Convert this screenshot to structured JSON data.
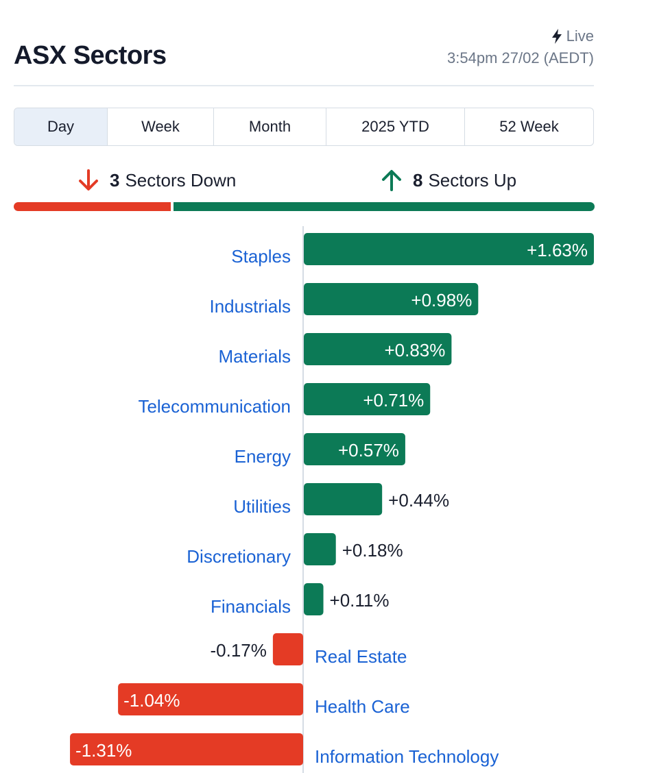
{
  "header": {
    "title": "ASX Sectors",
    "live_label": "Live",
    "timestamp": "3:54pm 27/02 (AEDT)"
  },
  "tabs": [
    {
      "label": "Day",
      "active": true
    },
    {
      "label": "Week",
      "active": false
    },
    {
      "label": "Month",
      "active": false
    },
    {
      "label": "2025 YTD",
      "active": false
    },
    {
      "label": "52 Week",
      "active": false
    }
  ],
  "summary": {
    "down_count": "3",
    "down_label": "Sectors Down",
    "up_count": "8",
    "up_label": "Sectors Up"
  },
  "colors": {
    "positive": "#0c7a56",
    "negative": "#e43b25",
    "link": "#1a62d4",
    "axis": "#d5dce4"
  },
  "chart_data": {
    "type": "bar",
    "orientation": "horizontal",
    "categories": [
      "Staples",
      "Industrials",
      "Materials",
      "Telecommunication",
      "Energy",
      "Utilities",
      "Discretionary",
      "Financials",
      "Real Estate",
      "Health Care",
      "Information Technology"
    ],
    "values": [
      1.63,
      0.98,
      0.83,
      0.71,
      0.57,
      0.44,
      0.18,
      0.11,
      -0.17,
      -1.04,
      -1.31
    ],
    "labels": [
      "+1.63%",
      "+0.98%",
      "+0.83%",
      "+0.71%",
      "+0.57%",
      "+0.44%",
      "+0.18%",
      "+0.11%",
      "-0.17%",
      "-1.04%",
      "-1.31%"
    ],
    "unit": "%"
  }
}
